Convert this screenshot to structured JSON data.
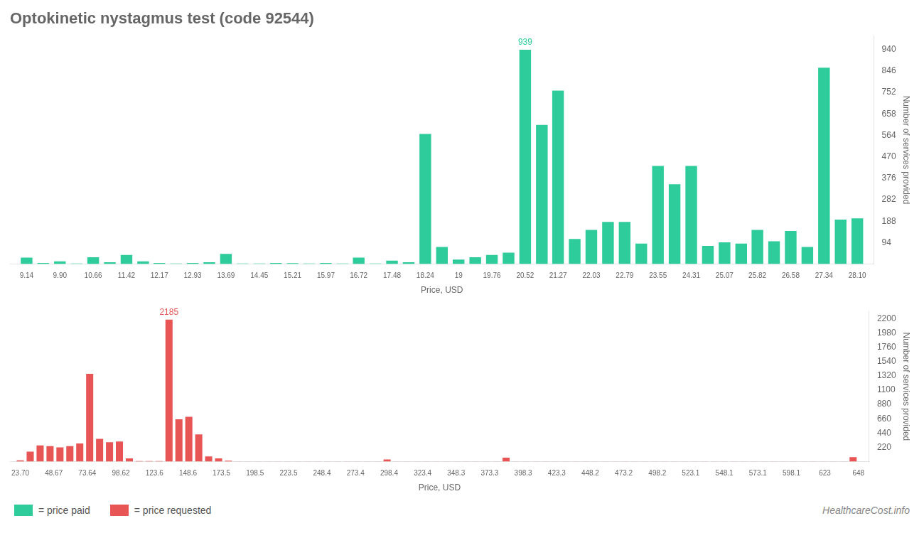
{
  "chart_data": [
    {
      "type": "bar",
      "title": "Optokinetic nystagmus test (code 92544)",
      "xlabel": "Price, USD",
      "ylabel": "Number of services provided",
      "x": [
        9.14,
        9.52,
        9.9,
        10.28,
        10.66,
        11.04,
        11.42,
        11.8,
        12.17,
        12.55,
        12.93,
        13.31,
        13.69,
        14.07,
        14.45,
        14.83,
        15.21,
        15.59,
        15.97,
        16.35,
        16.72,
        17.1,
        17.48,
        17.86,
        18.24,
        18.62,
        19.0,
        19.38,
        19.76,
        20.14,
        20.52,
        20.9,
        21.27,
        21.65,
        22.03,
        22.41,
        22.79,
        23.17,
        23.55,
        23.93,
        24.31,
        24.69,
        25.07,
        25.45,
        25.82,
        26.2,
        26.58,
        26.96,
        27.34,
        27.72,
        28.1
      ],
      "series": [
        {
          "name": "= price paid",
          "color": "#2ecc9a",
          "values": [
            28,
            5,
            12,
            3,
            30,
            8,
            40,
            12,
            5,
            3,
            5,
            8,
            45,
            3,
            3,
            5,
            4,
            3,
            5,
            3,
            28,
            3,
            15,
            8,
            570,
            75,
            20,
            30,
            40,
            50,
            939,
            610,
            760,
            110,
            150,
            185,
            185,
            90,
            430,
            350,
            430,
            80,
            95,
            90,
            150,
            100,
            145,
            75,
            860,
            195,
            200
          ]
        }
      ],
      "xlim": [
        8.76,
        28.48
      ],
      "xticks": [
        9.14,
        {
          "value": 9.9,
          "label": "9.90"
        },
        10.66,
        11.42,
        12.17,
        12.93,
        13.69,
        14.45,
        15.21,
        15.97,
        16.72,
        17.48,
        18.24,
        19,
        19.76,
        20.52,
        21.27,
        22.03,
        22.79,
        23.55,
        24.31,
        25.07,
        25.82,
        26.58,
        27.34,
        {
          "value": 28.1,
          "label": "28.10"
        }
      ],
      "ylim": [
        0,
        1000
      ],
      "yticks": [
        94,
        188,
        282,
        376,
        470,
        564,
        658,
        752,
        846,
        940
      ],
      "grid": false,
      "legend": "lower left",
      "annotations": [
        {
          "x": 20.52,
          "y": 939,
          "text": "939"
        }
      ]
    },
    {
      "type": "bar",
      "xlabel": "Price, USD",
      "ylabel": "Number of services provided",
      "x": [
        23.7,
        31.08,
        38.47,
        45.85,
        53.24,
        60.62,
        68.0,
        75.39,
        82.77,
        90.16,
        97.54,
        104.93,
        112.31,
        119.7,
        127.08,
        134.47,
        141.85,
        149.23,
        156.62,
        164.0,
        171.39,
        178.77,
        186.16,
        193.54,
        200.93,
        208.31,
        215.7,
        223.08,
        230.47,
        237.85,
        245.24,
        252.62,
        260.0,
        267.39,
        274.77,
        282.16,
        289.54,
        296.93,
        304.31,
        311.7,
        319.08,
        326.47,
        333.85,
        341.24,
        348.62,
        356.01,
        363.39,
        370.78,
        378.16,
        385.54,
        392.93,
        400.31,
        407.7,
        415.08,
        422.47,
        429.85,
        437.24,
        444.62,
        452.01,
        459.39,
        466.78,
        474.16,
        481.54,
        488.93,
        496.31,
        503.7,
        511.08,
        518.47,
        525.85,
        533.24,
        540.62,
        548.01,
        555.39,
        562.78,
        570.16,
        577.54,
        584.93,
        592.31,
        599.7,
        607.08,
        614.47,
        621.85,
        629.24,
        636.62,
        644.01
      ],
      "series": [
        {
          "name": "= price requested",
          "color": "#e85555",
          "values": [
            20,
            155,
            250,
            240,
            220,
            240,
            280,
            1350,
            350,
            300,
            310,
            50,
            10,
            10,
            10,
            2185,
            650,
            690,
            420,
            80,
            50,
            15,
            5,
            5,
            5,
            5,
            5,
            5,
            5,
            5,
            5,
            5,
            5,
            5,
            5,
            5,
            5,
            35,
            5,
            5,
            5,
            5,
            5,
            5,
            5,
            5,
            5,
            5,
            5,
            60,
            5,
            5,
            5,
            5,
            5,
            5,
            5,
            5,
            5,
            5,
            5,
            5,
            5,
            5,
            5,
            5,
            5,
            5,
            5,
            5,
            5,
            5,
            5,
            5,
            5,
            5,
            5,
            5,
            5,
            5,
            5,
            5,
            5,
            5,
            70
          ]
        }
      ],
      "xlim": [
        16,
        656
      ],
      "xticks": [
        {
          "value": 23.7,
          "label": "23.70"
        },
        48.67,
        73.64,
        98.62,
        123.6,
        148.6,
        173.5,
        198.5,
        223.5,
        248.4,
        273.4,
        298.4,
        323.4,
        348.3,
        373.3,
        398.3,
        423.3,
        448.2,
        473.2,
        498.2,
        523.1,
        548.1,
        573.1,
        598.1,
        623,
        648
      ],
      "ylim": [
        0,
        2310
      ],
      "yticks": [
        220,
        440,
        660,
        880,
        1100,
        1320,
        1540,
        1760,
        1980,
        2200
      ],
      "grid": false,
      "legend": "lower left",
      "annotations": [
        {
          "x": 134.47,
          "y": 2185,
          "text": "2185"
        }
      ],
      "watermark": "HealthcareCost.info"
    }
  ]
}
